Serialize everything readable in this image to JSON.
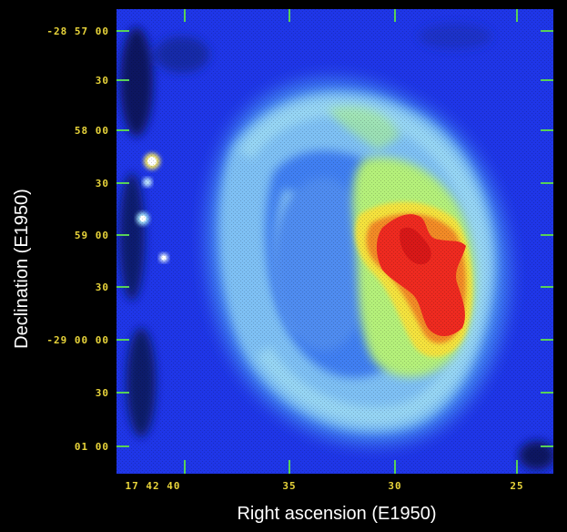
{
  "figure": {
    "y_axis_title": "Declination (E1950)",
    "x_axis_title": "Right ascension (E1950)",
    "y_ticks": [
      "-28 57 00",
      "30",
      "58 00",
      "30",
      "59 00",
      "30",
      "-29 00 00",
      "30",
      "01 00"
    ],
    "x_ticks": [
      "17 42 40",
      "35",
      "30",
      "25"
    ],
    "colors": {
      "background": "#000000",
      "field": "#1f36e8",
      "tick_lines": "#58d058",
      "tick_labels": "#e8d43a",
      "axis_titles": "#ffffff"
    }
  }
}
